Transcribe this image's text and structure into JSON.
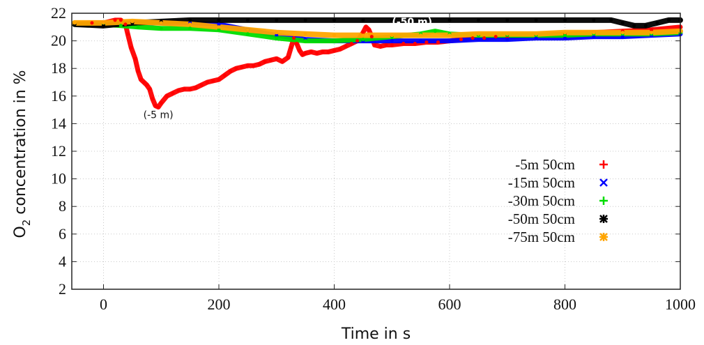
{
  "chart_data": {
    "type": "scatter",
    "xlabel": "Time in s",
    "ylabel_main": "O",
    "ylabel_sub": "2",
    "ylabel_rest": " concentration in %",
    "xlim": [
      -55,
      1000
    ],
    "ylim": [
      2,
      22
    ],
    "xticks": [
      0,
      200,
      400,
      600,
      800,
      1000
    ],
    "yticks": [
      2,
      4,
      6,
      8,
      10,
      12,
      14,
      16,
      18,
      20,
      22
    ],
    "grid": true,
    "legend_position": "right",
    "annotations": [
      {
        "text": "(-5 m)",
        "x": 95,
        "y": 14.4
      },
      {
        "text": "(-50 m)",
        "x": 535,
        "y": 21.4
      }
    ],
    "series": [
      {
        "name": "-5m 50cm",
        "color": "#ff0000",
        "marker": "+",
        "x": [
          -50,
          -20,
          0,
          20,
          30,
          38,
          42,
          48,
          55,
          60,
          65,
          70,
          75,
          80,
          85,
          90,
          95,
          100,
          110,
          120,
          130,
          140,
          150,
          160,
          170,
          180,
          190,
          200,
          210,
          220,
          230,
          240,
          250,
          260,
          270,
          280,
          290,
          300,
          310,
          320,
          325,
          330,
          335,
          340,
          345,
          350,
          360,
          370,
          380,
          390,
          400,
          410,
          420,
          430,
          440,
          450,
          455,
          460,
          465,
          470,
          480,
          490,
          500,
          520,
          540,
          560,
          580,
          600,
          620,
          640,
          660,
          680,
          700,
          750,
          800,
          850,
          900,
          950,
          1000
        ],
        "y": [
          21.2,
          21.3,
          21.3,
          21.5,
          21.5,
          21.2,
          20.5,
          19.5,
          18.7,
          17.8,
          17.2,
          17.0,
          16.8,
          16.5,
          15.8,
          15.3,
          15.2,
          15.5,
          16.0,
          16.2,
          16.4,
          16.5,
          16.5,
          16.6,
          16.8,
          17.0,
          17.1,
          17.2,
          17.5,
          17.8,
          18.0,
          18.1,
          18.2,
          18.2,
          18.3,
          18.5,
          18.6,
          18.7,
          18.5,
          18.8,
          19.5,
          20.2,
          19.8,
          19.3,
          19.0,
          19.1,
          19.2,
          19.1,
          19.2,
          19.2,
          19.3,
          19.4,
          19.6,
          19.8,
          20.0,
          20.6,
          21.0,
          20.8,
          20.3,
          19.7,
          19.6,
          19.7,
          19.7,
          19.8,
          19.8,
          19.9,
          19.9,
          20.0,
          20.1,
          20.2,
          20.2,
          20.3,
          20.3,
          20.4,
          20.5,
          20.6,
          20.7,
          20.8,
          21.0
        ]
      },
      {
        "name": "-15m 50cm",
        "color": "#0000ff",
        "marker": "x",
        "x": [
          -50,
          0,
          50,
          100,
          150,
          200,
          250,
          300,
          350,
          400,
          450,
          500,
          550,
          600,
          650,
          700,
          750,
          800,
          850,
          900,
          950,
          1000
        ],
        "y": [
          21.2,
          21.2,
          21.3,
          21.3,
          21.3,
          21.2,
          20.8,
          20.4,
          20.1,
          20.0,
          20.0,
          20.0,
          20.0,
          20.0,
          20.1,
          20.1,
          20.2,
          20.2,
          20.3,
          20.3,
          20.4,
          20.5
        ]
      },
      {
        "name": "-30m 50cm",
        "color": "#00dd00",
        "marker": "+",
        "x": [
          -50,
          0,
          30,
          60,
          100,
          150,
          200,
          250,
          300,
          350,
          400,
          450,
          500,
          550,
          575,
          600,
          650,
          700,
          750,
          800,
          850,
          900,
          950,
          1000
        ],
        "y": [
          21.2,
          21.2,
          21.1,
          21.0,
          20.9,
          20.9,
          20.8,
          20.5,
          20.2,
          20.0,
          20.0,
          20.1,
          20.3,
          20.5,
          20.7,
          20.5,
          20.4,
          20.4,
          20.4,
          20.4,
          20.5,
          20.5,
          20.5,
          20.6
        ]
      },
      {
        "name": "-50m 50cm",
        "color": "#000000",
        "marker": "*",
        "x": [
          -50,
          0,
          50,
          100,
          150,
          200,
          250,
          300,
          350,
          400,
          450,
          500,
          550,
          600,
          650,
          700,
          750,
          800,
          850,
          880,
          900,
          920,
          940,
          960,
          980,
          1000
        ],
        "y": [
          21.2,
          21.1,
          21.3,
          21.4,
          21.5,
          21.5,
          21.5,
          21.5,
          21.5,
          21.5,
          21.5,
          21.5,
          21.5,
          21.5,
          21.5,
          21.5,
          21.5,
          21.5,
          21.5,
          21.5,
          21.3,
          21.1,
          21.1,
          21.3,
          21.5,
          21.5
        ]
      },
      {
        "name": "-75m 50cm",
        "color": "#ffa500",
        "marker": "*",
        "x": [
          -50,
          0,
          50,
          100,
          150,
          200,
          250,
          300,
          350,
          400,
          450,
          500,
          550,
          600,
          650,
          700,
          750,
          800,
          850,
          900,
          950,
          1000
        ],
        "y": [
          21.3,
          21.3,
          21.4,
          21.3,
          21.2,
          21.0,
          20.8,
          20.6,
          20.5,
          20.4,
          20.4,
          20.4,
          20.4,
          20.4,
          20.5,
          20.5,
          20.5,
          20.6,
          20.6,
          20.6,
          20.6,
          20.7
        ]
      }
    ]
  }
}
